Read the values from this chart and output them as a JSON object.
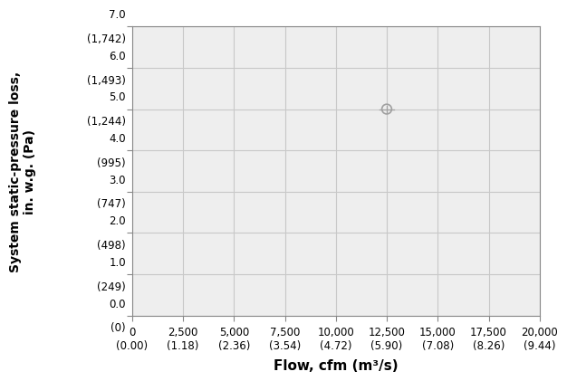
{
  "title": "",
  "xlabel": "Flow, cfm (m³/s)",
  "ylabel": "System static-pressure loss,\nin. w.g. (Pa)",
  "xlim": [
    0,
    20000
  ],
  "ylim": [
    0.0,
    7.0
  ],
  "x_ticks": [
    0,
    2500,
    5000,
    7500,
    10000,
    12500,
    15000,
    17500,
    20000
  ],
  "x_tick_labels_cfm": [
    "0",
    "2,500",
    "5,000",
    "7,500",
    "10,000",
    "12,500",
    "15,000",
    "17,500",
    "20,000"
  ],
  "x_tick_labels_si": [
    "(0.00)",
    "(1.18)",
    "(2.36)",
    "(3.54)",
    "(4.72)",
    "(5.90)",
    "(7.08)",
    "(8.26)",
    "(9.44)"
  ],
  "y_ticks": [
    0.0,
    1.0,
    2.0,
    3.0,
    4.0,
    5.0,
    6.0,
    7.0
  ],
  "y_tick_labels_inWG": [
    "0.0",
    "1.0",
    "2.0",
    "3.0",
    "4.0",
    "5.0",
    "6.0",
    "7.0"
  ],
  "y_tick_labels_pa": [
    "(0)",
    "(249)",
    "(498)",
    "(747)",
    "(995)",
    "(1,244)",
    "(1,493)",
    "(1,742)"
  ],
  "duty_point_x": 12500,
  "duty_point_y": 5.0,
  "point_color": "#a0a0a0",
  "point_size": 60,
  "grid_color": "#c8c8c8",
  "bg_color": "#eeeeee",
  "label_fontsize": 10,
  "tick_fontsize": 8.5,
  "xlabel_fontsize": 11
}
